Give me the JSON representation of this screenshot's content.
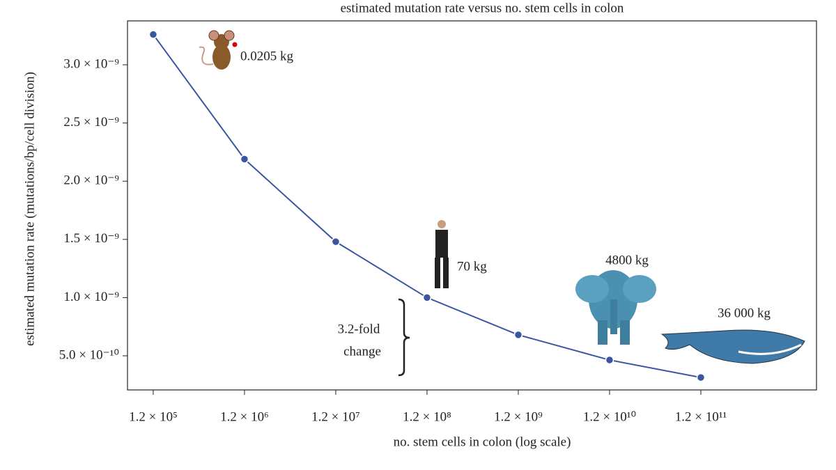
{
  "chart_data": {
    "type": "line",
    "title": "estimated mutation rate versus no. stem cells in colon",
    "x_label": "no. stem cells in colon (log scale)",
    "y_label": "estimated mutation rate (mutations/bp/cell division)",
    "x": [
      120000,
      1200000,
      12000000,
      120000000,
      1200000000,
      12000000000,
      120000000000
    ],
    "series": [
      {
        "name": "mutation rate",
        "color": "#3a56a0",
        "values": [
          3.26e-09,
          2.19e-09,
          1.48e-09,
          1e-09,
          6.8e-10,
          4.64e-10,
          3.14e-10
        ]
      }
    ],
    "x_log_scale": true,
    "xlim": [
      62700,
      2220000000000
    ],
    "ylim": [
      2.07e-10,
      3.377e-09
    ],
    "xticks": [
      {
        "value": 120000,
        "label": "1.2 × 10⁵"
      },
      {
        "value": 1200000,
        "label": "1.2 × 10⁶"
      },
      {
        "value": 12000000,
        "label": "1.2 × 10⁷"
      },
      {
        "value": 120000000,
        "label": "1.2 × 10⁸"
      },
      {
        "value": 1200000000,
        "label": "1.2 × 10⁹"
      },
      {
        "value": 12000000000,
        "label": "1.2 × 10¹⁰"
      },
      {
        "value": 120000000000,
        "label": "1.2 × 10¹¹"
      }
    ],
    "yticks": [
      {
        "value": 5e-10,
        "label": "5.0 × 10⁻¹⁰"
      },
      {
        "value": 1e-09,
        "label": "1.0 × 10⁻⁹"
      },
      {
        "value": 1.5e-09,
        "label": "1.5 × 10⁻⁹"
      },
      {
        "value": 2e-09,
        "label": "2.0 × 10⁻⁹"
      },
      {
        "value": 2.5e-09,
        "label": "2.5 × 10⁻⁹"
      },
      {
        "value": 3e-09,
        "label": "3.0 × 10⁻⁹"
      }
    ],
    "annotations": [
      "0.0205 kg",
      "70 kg",
      "4800 kg",
      "36 000 kg",
      "3.2-fold",
      "change"
    ]
  }
}
